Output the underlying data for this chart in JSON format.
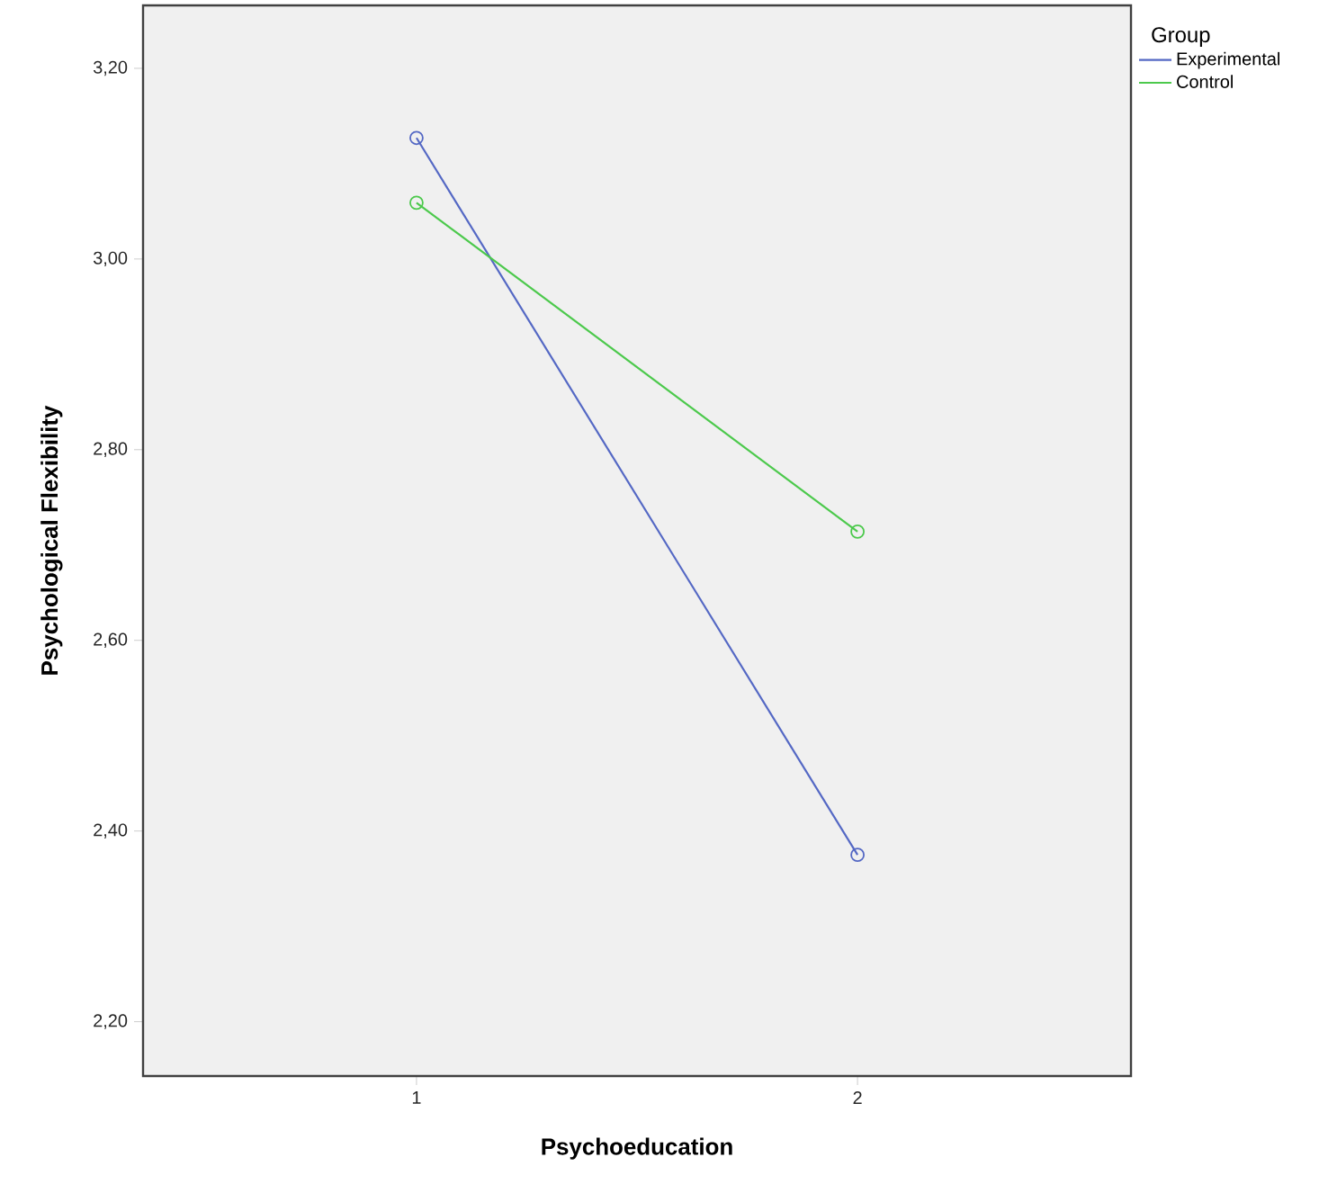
{
  "chart_data": {
    "type": "line",
    "xlabel": "Psychoeducation",
    "ylabel": "Psychological Flexibility",
    "legend_title": "Group",
    "x": [
      1,
      2
    ],
    "series": [
      {
        "name": "Experimental",
        "color": "#5468c4",
        "values": [
          3.127,
          2.375
        ]
      },
      {
        "name": "Control",
        "color": "#4cc94c",
        "values": [
          3.059,
          2.714
        ]
      }
    ],
    "xlim": [
      0.38,
      2.62
    ],
    "xticks": [
      1,
      2
    ],
    "ylim": [
      2.143,
      3.266
    ],
    "yticks": [
      {
        "value": 2.2,
        "label": "2,20"
      },
      {
        "value": 2.4,
        "label": "2,40"
      },
      {
        "value": 2.6,
        "label": "2,60"
      },
      {
        "value": 2.8,
        "label": "2,80"
      },
      {
        "value": 3.0,
        "label": "3,00"
      },
      {
        "value": 3.2,
        "label": "3,20"
      }
    ],
    "legend": "top right",
    "marker": "circle",
    "line_style": "solid",
    "grid": false
  }
}
